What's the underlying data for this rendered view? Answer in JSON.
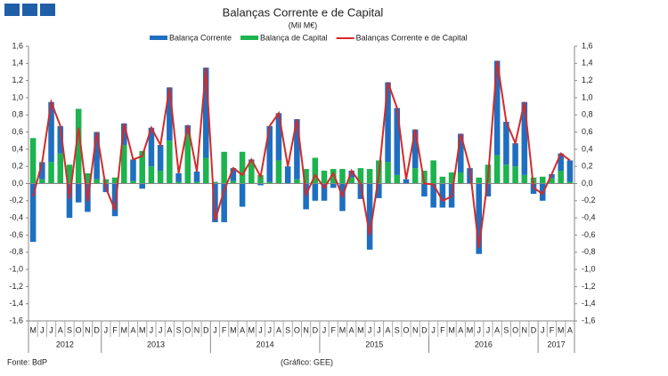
{
  "chart_data": {
    "type": "bar-line",
    "title": "Balanças Corrente e de Capital",
    "subtitle": "(Mil M€)",
    "source": "Fonte: BdP",
    "credit": "(Gráfico: GEE)",
    "categories": [
      "M",
      "J",
      "J",
      "A",
      "S",
      "O",
      "N",
      "D",
      "J",
      "F",
      "M",
      "A",
      "M",
      "J",
      "J",
      "A",
      "S",
      "O",
      "N",
      "D",
      "J",
      "F",
      "M",
      "A",
      "M",
      "J",
      "J",
      "A",
      "S",
      "O",
      "N",
      "D",
      "J",
      "F",
      "M",
      "A",
      "M",
      "J",
      "J",
      "A",
      "S",
      "O",
      "N",
      "D",
      "J",
      "F",
      "M",
      "A",
      "M",
      "J",
      "J",
      "A",
      "S",
      "O",
      "N",
      "D",
      "J",
      "F",
      "M",
      "A"
    ],
    "years": [
      "2012",
      "2013",
      "2014",
      "2015",
      "2016",
      "2017"
    ],
    "series": [
      {
        "name": "Balança Corrente",
        "color": "#1f6fc0",
        "kind": "bar",
        "values": [
          -0.68,
          0.2,
          0.7,
          0.32,
          -0.4,
          -0.22,
          -0.33,
          0.55,
          -0.1,
          -0.38,
          0.25,
          0.25,
          -0.06,
          0.45,
          0.3,
          0.62,
          0.1,
          0.1,
          0.12,
          1.05,
          -0.45,
          -0.45,
          0.15,
          -0.27,
          0.02,
          -0.02,
          0.65,
          0.55,
          0.2,
          0.7,
          -0.3,
          -0.2,
          -0.2,
          -0.05,
          -0.32,
          0.08,
          -0.18,
          -0.77,
          -0.17,
          0.93,
          0.78,
          0.05,
          0.45,
          -0.15,
          -0.28,
          -0.28,
          -0.28,
          0.45,
          0.18,
          -0.82,
          -0.15,
          1.1,
          0.5,
          0.27,
          0.85,
          -0.12,
          -0.2,
          0.05,
          0.2,
          0.25
        ]
      },
      {
        "name": "Balança de Capital",
        "color": "#1db34f",
        "kind": "bar",
        "values": [
          0.53,
          0.05,
          0.25,
          0.35,
          0.22,
          0.87,
          0.12,
          0.05,
          0.05,
          0.07,
          0.45,
          0.03,
          0.38,
          0.2,
          0.15,
          0.5,
          0.02,
          0.58,
          0.02,
          0.3,
          0.02,
          0.37,
          0.03,
          0.37,
          0.26,
          0.1,
          0.02,
          0.27,
          0.0,
          0.05,
          0.17,
          0.3,
          0.15,
          0.17,
          0.17,
          0.07,
          0.18,
          0.17,
          0.27,
          0.25,
          0.1,
          0.0,
          0.18,
          0.15,
          0.27,
          0.08,
          0.13,
          0.13,
          0.0,
          0.07,
          0.22,
          0.33,
          0.22,
          0.2,
          0.1,
          0.07,
          0.08,
          0.06,
          0.15,
          0.02
        ]
      },
      {
        "name": "Balanças Corrente e de Capital",
        "color": "#d42a2a",
        "kind": "line",
        "values": [
          -0.15,
          0.25,
          0.95,
          0.67,
          -0.18,
          0.65,
          -0.21,
          0.6,
          -0.05,
          -0.31,
          0.7,
          0.28,
          0.32,
          0.65,
          0.45,
          1.12,
          0.12,
          0.68,
          0.14,
          1.35,
          -0.43,
          -0.08,
          0.18,
          0.1,
          0.28,
          0.08,
          0.67,
          0.82,
          0.2,
          0.75,
          -0.13,
          0.1,
          -0.05,
          0.12,
          -0.15,
          0.15,
          0.0,
          -0.6,
          0.1,
          1.18,
          0.88,
          0.05,
          0.63,
          0.0,
          -0.01,
          -0.2,
          -0.15,
          0.58,
          0.18,
          -0.75,
          0.07,
          1.43,
          0.72,
          0.47,
          0.95,
          -0.05,
          -0.12,
          0.11,
          0.35,
          0.27
        ]
      }
    ],
    "ylim": [
      -1.6,
      1.6
    ],
    "yticks": [
      {
        "value": 1.6,
        "label": "1,6"
      },
      {
        "value": 1.4,
        "label": "1,4"
      },
      {
        "value": 1.2,
        "label": "1,2"
      },
      {
        "value": 1.0,
        "label": "1,0"
      },
      {
        "value": 0.8,
        "label": "0,8"
      },
      {
        "value": 0.6,
        "label": "0,6"
      },
      {
        "value": 0.4,
        "label": "0,4"
      },
      {
        "value": 0.2,
        "label": "0,2"
      },
      {
        "value": 0,
        "label": "0,0"
      },
      {
        "value": -0.2,
        "label": "-0,2"
      },
      {
        "value": -0.4,
        "label": "-0,4"
      },
      {
        "value": -0.6,
        "label": "-0,6"
      },
      {
        "value": -0.8,
        "label": "-0,8"
      },
      {
        "value": -1.0,
        "label": "-1,0"
      },
      {
        "value": -1.2,
        "label": "-1,2"
      },
      {
        "value": -1.4,
        "label": "-1,4"
      },
      {
        "value": -1.6,
        "label": "-1,6"
      }
    ]
  }
}
